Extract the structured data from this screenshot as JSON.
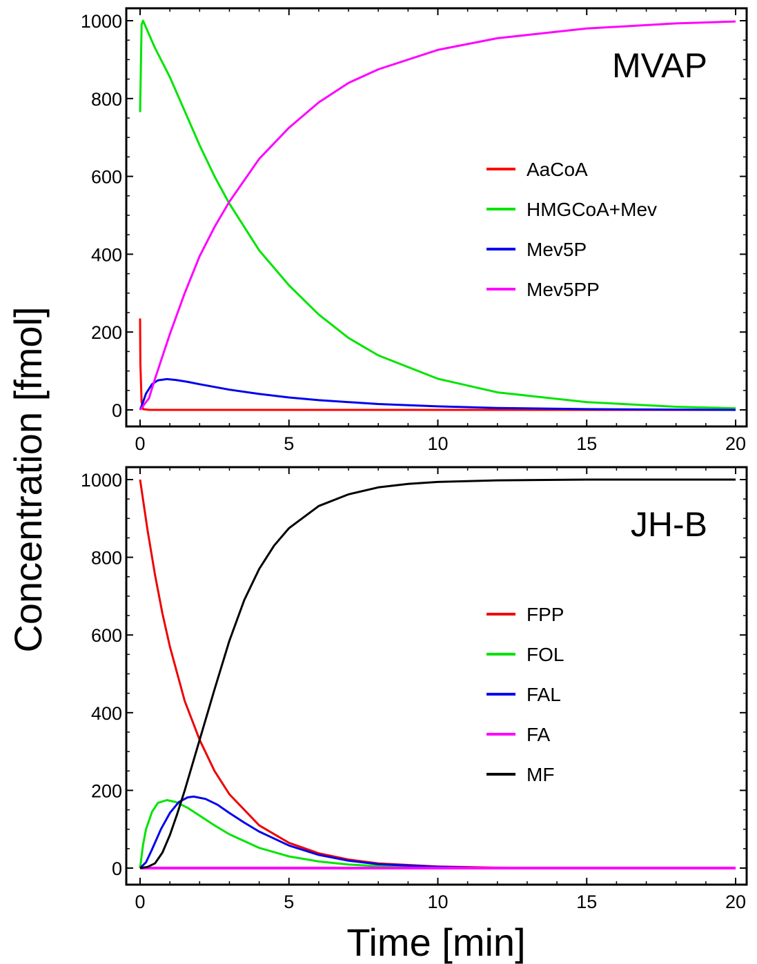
{
  "figure": {
    "ylabel": "Concentration [fmol]",
    "xlabel": "Time [min]"
  },
  "chart_data": [
    {
      "type": "line",
      "title": "MVAP",
      "xlim": [
        0,
        20
      ],
      "ylim": [
        0,
        1000
      ],
      "xticks": [
        0,
        5,
        10,
        15,
        20
      ],
      "yticks": [
        0,
        200,
        400,
        600,
        800,
        1000
      ],
      "legend": "center-right",
      "grid": false,
      "series": [
        {
          "name": "AaCoA",
          "color": "#ff0000",
          "x": [
            0,
            0.01,
            0.05,
            0.1,
            0.3,
            1,
            5,
            10,
            15,
            20
          ],
          "y": [
            235,
            120,
            20,
            2,
            0,
            0,
            0,
            0,
            0,
            0
          ]
        },
        {
          "name": "HMGCoA+Mev",
          "color": "#00e400",
          "x": [
            0,
            0.05,
            0.1,
            0.5,
            1,
            2,
            2.5,
            3,
            4,
            5,
            6,
            7,
            8,
            10,
            12,
            15,
            18,
            20
          ],
          "y": [
            765,
            990,
            1000,
            930,
            855,
            680,
            600,
            530,
            410,
            320,
            245,
            185,
            140,
            80,
            45,
            20,
            8,
            4
          ]
        },
        {
          "name": "Mev5P",
          "color": "#0000ee",
          "x": [
            0,
            0.1,
            0.2,
            0.4,
            0.6,
            0.9,
            1.2,
            1.6,
            2,
            3,
            4,
            5,
            6,
            8,
            10,
            12,
            15,
            20
          ],
          "y": [
            0,
            20,
            42,
            66,
            76,
            79,
            77,
            72,
            66,
            52,
            41,
            32,
            25,
            15,
            9,
            5,
            2,
            0
          ]
        },
        {
          "name": "Mev5PP",
          "color": "#ff00ff",
          "x": [
            0,
            0.3,
            0.5,
            1,
            1.5,
            2,
            2.5,
            3,
            4,
            5,
            6,
            7,
            8,
            10,
            12,
            15,
            18,
            20
          ],
          "y": [
            0,
            30,
            80,
            195,
            300,
            395,
            470,
            535,
            645,
            725,
            790,
            840,
            875,
            925,
            955,
            980,
            993,
            998
          ]
        }
      ]
    },
    {
      "type": "line",
      "title": "JH-B",
      "xlim": [
        0,
        20
      ],
      "ylim": [
        0,
        1000
      ],
      "xticks": [
        0,
        5,
        10,
        15,
        20
      ],
      "yticks": [
        0,
        200,
        400,
        600,
        800,
        1000
      ],
      "legend": "center-right",
      "grid": false,
      "series": [
        {
          "name": "FPP",
          "color": "#ee0000",
          "x": [
            0,
            0.25,
            0.5,
            0.75,
            1,
            1.5,
            2,
            2.5,
            3,
            4,
            5,
            6,
            7,
            8,
            10,
            12,
            15,
            20
          ],
          "y": [
            1000,
            870,
            755,
            655,
            570,
            430,
            330,
            250,
            190,
            110,
            65,
            38,
            22,
            12,
            4,
            1,
            0,
            0
          ]
        },
        {
          "name": "FOL",
          "color": "#00e400",
          "x": [
            0,
            0.1,
            0.2,
            0.4,
            0.6,
            0.9,
            1.2,
            1.6,
            2,
            2.5,
            3,
            4,
            5,
            6,
            7,
            8,
            10,
            12,
            20
          ],
          "y": [
            0,
            60,
            100,
            145,
            168,
            175,
            170,
            155,
            135,
            110,
            87,
            52,
            30,
            17,
            9,
            5,
            1,
            0,
            0
          ]
        },
        {
          "name": "FAL",
          "color": "#0000ee",
          "x": [
            0,
            0.2,
            0.4,
            0.7,
            1,
            1.3,
            1.6,
            1.8,
            2.2,
            2.6,
            3,
            3.5,
            4,
            5,
            6,
            7,
            8,
            10,
            12,
            20
          ],
          "y": [
            0,
            15,
            48,
            100,
            142,
            170,
            182,
            184,
            178,
            163,
            142,
            117,
            94,
            58,
            34,
            19,
            10,
            3,
            0,
            0
          ]
        },
        {
          "name": "FA",
          "color": "#ff00ff",
          "x": [
            0,
            5,
            10,
            15,
            20
          ],
          "y": [
            0,
            0,
            0,
            0,
            0
          ]
        },
        {
          "name": "MF",
          "color": "#000000",
          "x": [
            0,
            0.25,
            0.5,
            0.75,
            1,
            1.25,
            1.5,
            2,
            2.5,
            3,
            3.5,
            4,
            4.5,
            5,
            6,
            7,
            8,
            9,
            10,
            12,
            15,
            20
          ],
          "y": [
            0,
            3,
            12,
            40,
            85,
            140,
            200,
            330,
            460,
            585,
            690,
            770,
            830,
            875,
            932,
            962,
            980,
            989,
            994,
            998,
            1000,
            1000
          ]
        }
      ]
    }
  ]
}
